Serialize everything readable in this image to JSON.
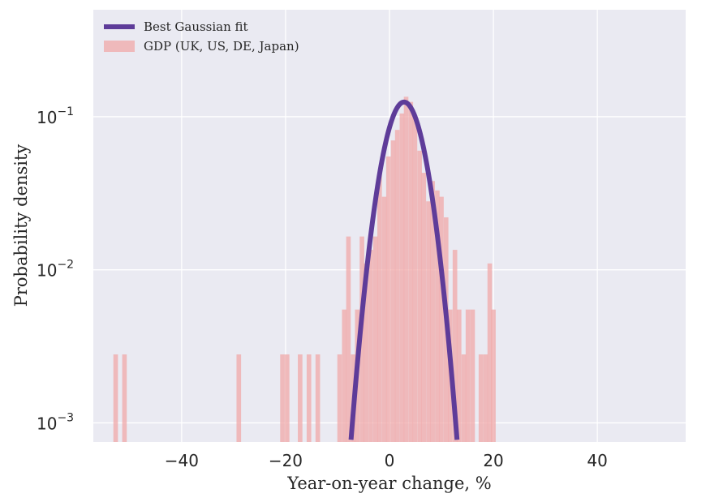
{
  "chart_data": {
    "type": "bar",
    "xlabel": "Year-on-year change, %",
    "ylabel": "Probability density",
    "y_scale": "log",
    "xlim": [
      -57,
      57
    ],
    "ylim": [
      0.00075,
      0.5
    ],
    "grid": true,
    "legend_position": "top-left",
    "x_ticks": [
      {
        "value": -40,
        "label": "−40"
      },
      {
        "value": -20,
        "label": "−20"
      },
      {
        "value": 0,
        "label": "0"
      },
      {
        "value": 20,
        "label": "20"
      },
      {
        "value": 40,
        "label": "40"
      }
    ],
    "y_ticks": [
      {
        "value": 0.001,
        "base": "10",
        "exp": "−3"
      },
      {
        "value": 0.01,
        "base": "10",
        "exp": "−2"
      },
      {
        "value": 0.1,
        "base": "10",
        "exp": "−1"
      }
    ],
    "histogram": {
      "name": "GDP (UK, US, DE, Japan)",
      "color": "#f0a8a8",
      "bin_width": 0.88,
      "bins": [
        {
          "x": -52.7,
          "density": 0.0028
        },
        {
          "x": -51.0,
          "density": 0.0028
        },
        {
          "x": -29.0,
          "density": 0.0028
        },
        {
          "x": -20.6,
          "density": 0.0028
        },
        {
          "x": -19.7,
          "density": 0.0028
        },
        {
          "x": -17.2,
          "density": 0.0028
        },
        {
          "x": -15.5,
          "density": 0.0028
        },
        {
          "x": -13.8,
          "density": 0.0028
        },
        {
          "x": -9.6,
          "density": 0.0028
        },
        {
          "x": -8.7,
          "density": 0.0055
        },
        {
          "x": -7.9,
          "density": 0.0165
        },
        {
          "x": -7.0,
          "density": 0.0028
        },
        {
          "x": -6.2,
          "density": 0.0055
        },
        {
          "x": -5.3,
          "density": 0.0165
        },
        {
          "x": -4.5,
          "density": 0.011
        },
        {
          "x": -3.6,
          "density": 0.0135
        },
        {
          "x": -2.7,
          "density": 0.0165
        },
        {
          "x": -1.9,
          "density": 0.043
        },
        {
          "x": -1.0,
          "density": 0.03
        },
        {
          "x": -0.2,
          "density": 0.055
        },
        {
          "x": 0.7,
          "density": 0.07
        },
        {
          "x": 1.5,
          "density": 0.082
        },
        {
          "x": 2.4,
          "density": 0.105
        },
        {
          "x": 3.2,
          "density": 0.135
        },
        {
          "x": 4.1,
          "density": 0.125
        },
        {
          "x": 4.9,
          "density": 0.098
        },
        {
          "x": 5.8,
          "density": 0.06
        },
        {
          "x": 6.6,
          "density": 0.043
        },
        {
          "x": 7.5,
          "density": 0.028
        },
        {
          "x": 8.3,
          "density": 0.038
        },
        {
          "x": 9.2,
          "density": 0.033
        },
        {
          "x": 10.0,
          "density": 0.03
        },
        {
          "x": 10.9,
          "density": 0.022
        },
        {
          "x": 11.7,
          "density": 0.0055
        },
        {
          "x": 12.6,
          "density": 0.0135
        },
        {
          "x": 13.4,
          "density": 0.0055
        },
        {
          "x": 14.3,
          "density": 0.0028
        },
        {
          "x": 15.1,
          "density": 0.0055
        },
        {
          "x": 16.0,
          "density": 0.0055
        },
        {
          "x": 17.6,
          "density": 0.0028
        },
        {
          "x": 18.5,
          "density": 0.0028
        },
        {
          "x": 19.3,
          "density": 0.011
        },
        {
          "x": 20.0,
          "density": 0.0055
        }
      ]
    },
    "fit": {
      "name": "Best Gaussian fit",
      "color": "#5e3c99",
      "mu": 2.8,
      "sigma": 3.2,
      "x_range": [
        -12,
        18
      ]
    }
  }
}
